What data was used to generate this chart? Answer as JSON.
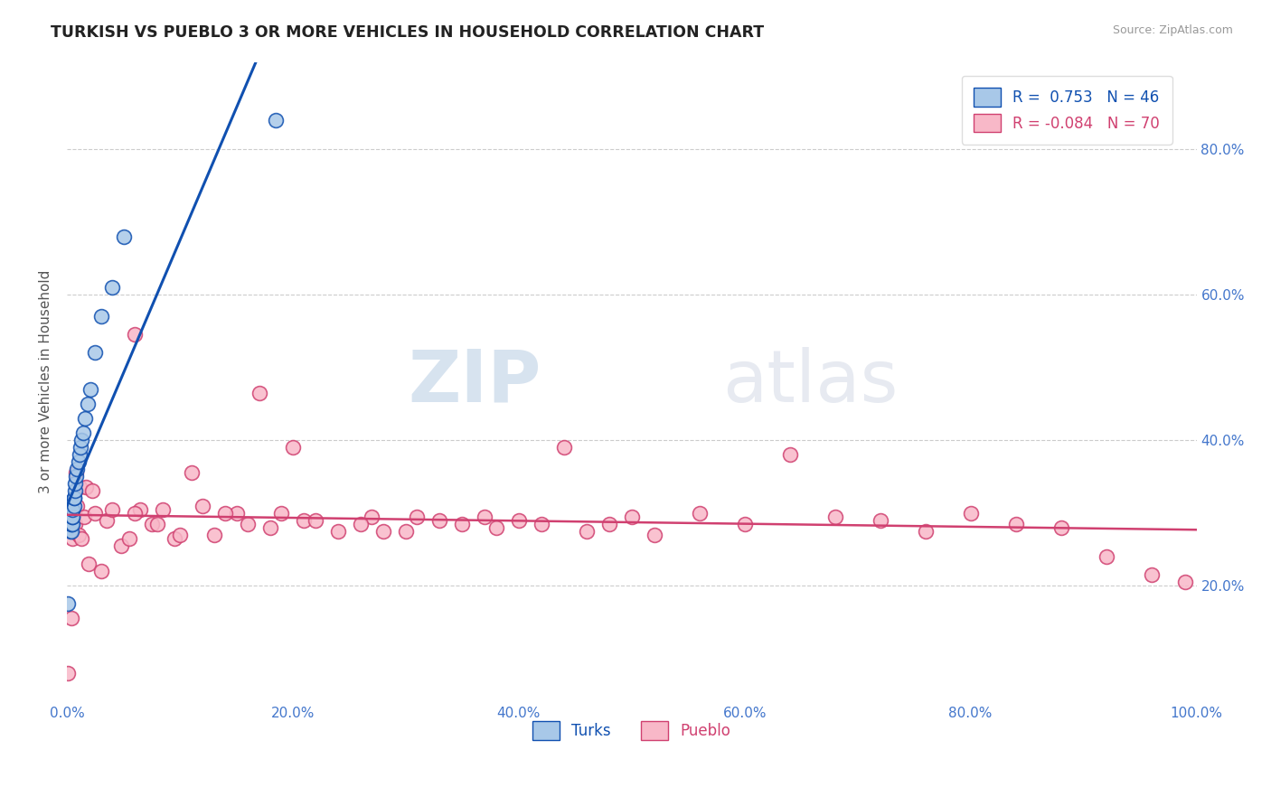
{
  "title": "TURKISH VS PUEBLO 3 OR MORE VEHICLES IN HOUSEHOLD CORRELATION CHART",
  "source": "Source: ZipAtlas.com",
  "ylabel": "3 or more Vehicles in Household",
  "legend_turks_R": "0.753",
  "legend_turks_N": "46",
  "legend_pueblo_R": "-0.084",
  "legend_pueblo_N": "70",
  "turks_color": "#A8C8E8",
  "pueblo_color": "#F8B8C8",
  "turks_line_color": "#1050B0",
  "pueblo_line_color": "#D04070",
  "background_color": "#FFFFFF",
  "watermark_color": "#C8D8E8",
  "turks_x": [
    0.0005,
    0.001,
    0.001,
    0.0015,
    0.002,
    0.002,
    0.002,
    0.002,
    0.003,
    0.003,
    0.003,
    0.003,
    0.003,
    0.003,
    0.004,
    0.004,
    0.004,
    0.004,
    0.004,
    0.004,
    0.004,
    0.005,
    0.005,
    0.005,
    0.005,
    0.005,
    0.006,
    0.006,
    0.006,
    0.007,
    0.007,
    0.008,
    0.009,
    0.01,
    0.011,
    0.012,
    0.013,
    0.014,
    0.016,
    0.018,
    0.021,
    0.025,
    0.03,
    0.04,
    0.05,
    0.185
  ],
  "turks_y": [
    0.28,
    0.175,
    0.285,
    0.3,
    0.285,
    0.295,
    0.305,
    0.315,
    0.285,
    0.295,
    0.305,
    0.275,
    0.285,
    0.295,
    0.275,
    0.285,
    0.295,
    0.305,
    0.285,
    0.295,
    0.305,
    0.285,
    0.295,
    0.305,
    0.295,
    0.305,
    0.31,
    0.32,
    0.32,
    0.33,
    0.34,
    0.35,
    0.36,
    0.37,
    0.38,
    0.39,
    0.4,
    0.41,
    0.43,
    0.45,
    0.47,
    0.52,
    0.57,
    0.61,
    0.68,
    0.84
  ],
  "pueblo_x": [
    0.001,
    0.002,
    0.004,
    0.005,
    0.006,
    0.007,
    0.008,
    0.009,
    0.01,
    0.011,
    0.013,
    0.015,
    0.017,
    0.019,
    0.022,
    0.025,
    0.03,
    0.035,
    0.04,
    0.048,
    0.055,
    0.06,
    0.065,
    0.075,
    0.085,
    0.095,
    0.11,
    0.13,
    0.15,
    0.17,
    0.19,
    0.21,
    0.24,
    0.27,
    0.3,
    0.33,
    0.37,
    0.4,
    0.44,
    0.48,
    0.52,
    0.56,
    0.6,
    0.64,
    0.68,
    0.72,
    0.76,
    0.8,
    0.84,
    0.88,
    0.92,
    0.96,
    0.99,
    0.06,
    0.08,
    0.1,
    0.12,
    0.14,
    0.16,
    0.18,
    0.2,
    0.22,
    0.26,
    0.28,
    0.31,
    0.35,
    0.38,
    0.42,
    0.46,
    0.5
  ],
  "pueblo_y": [
    0.08,
    0.3,
    0.155,
    0.265,
    0.3,
    0.285,
    0.355,
    0.31,
    0.27,
    0.335,
    0.265,
    0.295,
    0.335,
    0.23,
    0.33,
    0.3,
    0.22,
    0.29,
    0.305,
    0.255,
    0.265,
    0.545,
    0.305,
    0.285,
    0.305,
    0.265,
    0.355,
    0.27,
    0.3,
    0.465,
    0.3,
    0.29,
    0.275,
    0.295,
    0.275,
    0.29,
    0.295,
    0.29,
    0.39,
    0.285,
    0.27,
    0.3,
    0.285,
    0.38,
    0.295,
    0.29,
    0.275,
    0.3,
    0.285,
    0.28,
    0.24,
    0.215,
    0.205,
    0.3,
    0.285,
    0.27,
    0.31,
    0.3,
    0.285,
    0.28,
    0.39,
    0.29,
    0.285,
    0.275,
    0.295,
    0.285,
    0.28,
    0.285,
    0.275,
    0.295
  ],
  "xlim": [
    0.0,
    1.0
  ],
  "ylim": [
    0.04,
    0.92
  ],
  "xtick_positions": [
    0.0,
    0.2,
    0.4,
    0.6,
    0.8,
    1.0
  ],
  "xtick_labels": [
    "0.0%",
    "20.0%",
    "40.0%",
    "60.0%",
    "80.0%",
    "100.0%"
  ],
  "ytick_positions": [
    0.2,
    0.4,
    0.6,
    0.8
  ],
  "ytick_labels": [
    "20.0%",
    "40.0%",
    "60.0%",
    "80.0%"
  ],
  "tick_color": "#4477CC",
  "grid_color": "#CCCCCC"
}
